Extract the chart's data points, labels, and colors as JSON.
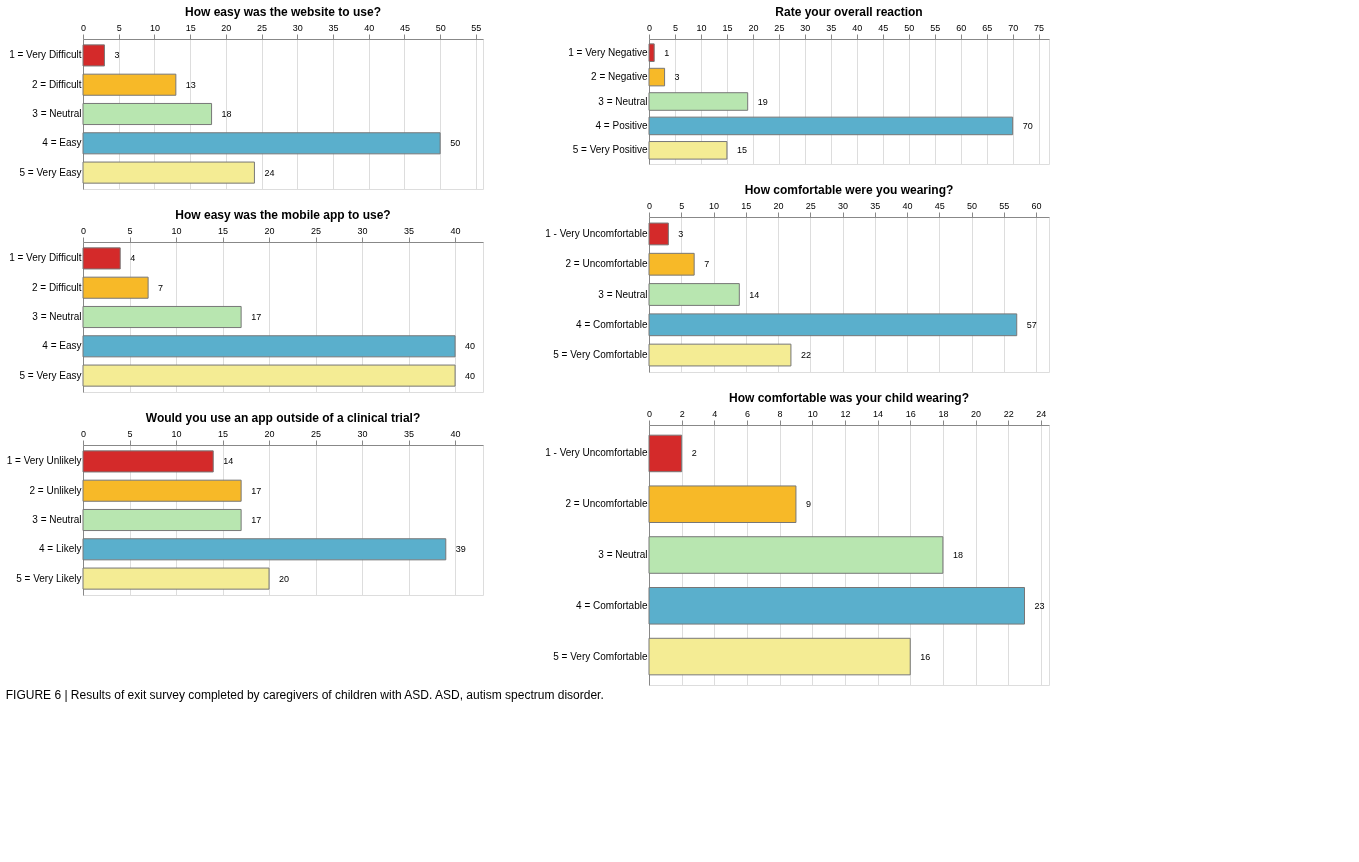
{
  "chart_data": [
    {
      "type": "bar",
      "orientation": "horizontal",
      "title": "How easy was the website to use?",
      "categories": [
        "1 = Very Difficult",
        "2 = Difficult",
        "3 = Neutral",
        "4 = Easy",
        "5 = Very Easy"
      ],
      "values": [
        3,
        13,
        18,
        50,
        24
      ],
      "colors": [
        "#d42a2a",
        "#f7b928",
        "#b8e6b0",
        "#5aafcc",
        "#f4ec94"
      ],
      "xlim": [
        0,
        56
      ],
      "xticks": [
        0,
        5,
        10,
        15,
        20,
        25,
        30,
        35,
        40,
        45,
        50,
        55
      ],
      "grid": "x",
      "data_labels": true
    },
    {
      "type": "bar",
      "orientation": "horizontal",
      "title": "How easy was the mobile app to use?",
      "categories": [
        "1 = Very Difficult",
        "2 = Difficult",
        "3 = Neutral",
        "4 = Easy",
        "5 = Very Easy"
      ],
      "values": [
        4,
        7,
        17,
        40,
        40
      ],
      "colors": [
        "#d42a2a",
        "#f7b928",
        "#b8e6b0",
        "#5aafcc",
        "#f4ec94"
      ],
      "xlim": [
        0,
        43
      ],
      "xticks": [
        0,
        5,
        10,
        15,
        20,
        25,
        30,
        35,
        40
      ],
      "grid": "x",
      "data_labels": true
    },
    {
      "type": "bar",
      "orientation": "horizontal",
      "title": "Would you use an app outside of a clinical trial?",
      "categories": [
        "1 = Very Unlikely",
        "2 = Unlikely",
        "3 = Neutral",
        "4 = Likely",
        "5 = Very Likely"
      ],
      "values": [
        14,
        17,
        17,
        39,
        20
      ],
      "colors": [
        "#d42a2a",
        "#f7b928",
        "#b8e6b0",
        "#5aafcc",
        "#f4ec94"
      ],
      "xlim": [
        0,
        43
      ],
      "xticks": [
        0,
        5,
        10,
        15,
        20,
        25,
        30,
        35,
        40
      ],
      "grid": "x",
      "data_labels": true
    },
    {
      "type": "bar",
      "orientation": "horizontal",
      "title": "Rate your overall reaction",
      "categories": [
        "1 = Very Negative",
        "2 = Negative",
        "3 = Neutral",
        "4 = Positive",
        "5 = Very Positive"
      ],
      "values": [
        1,
        3,
        19,
        70,
        15
      ],
      "colors": [
        "#d42a2a",
        "#f7b928",
        "#b8e6b0",
        "#5aafcc",
        "#f4ec94"
      ],
      "xlim": [
        0,
        77
      ],
      "xticks": [
        0,
        5,
        10,
        15,
        20,
        25,
        30,
        35,
        40,
        45,
        50,
        55,
        60,
        65,
        70,
        75
      ],
      "grid": "x",
      "data_labels": true
    },
    {
      "type": "bar",
      "orientation": "horizontal",
      "title": "How comfortable were you wearing?",
      "categories": [
        "1 - Very Uncomfortable",
        "2 = Uncomfortable",
        "3 = Neutral",
        "4 = Comfortable",
        "5 = Very Comfortable"
      ],
      "values": [
        3,
        7,
        14,
        57,
        22
      ],
      "colors": [
        "#d42a2a",
        "#f7b928",
        "#b8e6b0",
        "#5aafcc",
        "#f4ec94"
      ],
      "xlim": [
        0,
        62
      ],
      "xticks": [
        0,
        5,
        10,
        15,
        20,
        25,
        30,
        35,
        40,
        45,
        50,
        55,
        60
      ],
      "grid": "x",
      "data_labels": true
    },
    {
      "type": "bar",
      "orientation": "horizontal",
      "title": "How comfortable was your child wearing?",
      "categories": [
        "1 - Very Uncomfortable",
        "2 = Uncomfortable",
        "3 = Neutral",
        "4 = Comfortable",
        "5 = Very Comfortable"
      ],
      "values": [
        2,
        9,
        18,
        23,
        16
      ],
      "colors": [
        "#d42a2a",
        "#f7b928",
        "#b8e6b0",
        "#5aafcc",
        "#f4ec94"
      ],
      "xlim": [
        0,
        24.5
      ],
      "xticks": [
        0,
        2,
        4,
        6,
        8,
        10,
        12,
        14,
        16,
        18,
        20,
        22,
        24
      ],
      "grid": "x",
      "data_labels": true,
      "annotations": [
        "FIGURE 6 | Results of exit survey completed by caregivers of children with ASD. ASD, autism spectrum disorder."
      ]
    }
  ]
}
